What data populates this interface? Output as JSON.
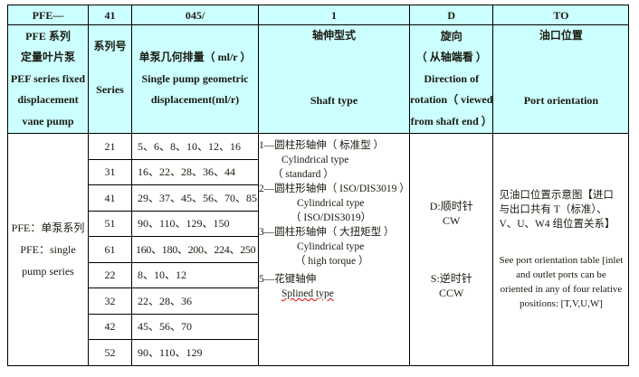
{
  "code_row": [
    "PFE—",
    "41",
    "045/",
    "1",
    "D",
    "TO"
  ],
  "headers": {
    "model": [
      "PFE 系列",
      "定量叶片泵",
      "PEF series fixed",
      "displacement",
      "vane pump"
    ],
    "series": [
      "系列号",
      "Series"
    ],
    "displacement": [
      "单泵几何排量（ ml/r ）",
      "Single pump geometric",
      "displacement(ml/r)"
    ],
    "shaft": [
      "轴伸型式",
      "Shaft type"
    ],
    "rotation": [
      "旋向",
      "（ 从轴端看 ）",
      "Direction of",
      "rotation（ viewed",
      "from shaft end ）"
    ],
    "port": [
      "油口位置",
      "Port orientation"
    ]
  },
  "model_desc": [
    "PFE：单泵系列",
    "PFE：single",
    "pump series"
  ],
  "rows": [
    {
      "series": "21",
      "displacement": "5、6、8、10、12、16"
    },
    {
      "series": "31",
      "displacement": "16、22、28、36、44"
    },
    {
      "series": "41",
      "displacement": "29、37、45、56、70、85"
    },
    {
      "series": "51",
      "displacement": "90、110、129、150"
    },
    {
      "series": "61",
      "displacement": "160、180、200、224、250"
    },
    {
      "series": "22",
      "displacement": "8、10、12"
    },
    {
      "series": "32",
      "displacement": "22、28、36"
    },
    {
      "series": "42",
      "displacement": "45、56、70"
    },
    {
      "series": "52",
      "displacement": "90、110、129"
    }
  ],
  "shaft_types": [
    "1—圆柱形轴伸（ 标准型 ）",
    "Cylindrical type",
    "（ standard ）",
    "2—圆柱形轴伸（ ISO/DIS3019 ）",
    "Cylindrical type",
    "（ ISO/DIS3019）",
    "3—圆柱形轴伸（ 大扭矩型 ）",
    "Cylindrical type",
    "（ high torque ）",
    "5—花键轴伸",
    "Splined type"
  ],
  "rotation": {
    "cw": [
      "D:顺时针",
      "CW"
    ],
    "ccw": [
      "S:逆时针",
      "CCW"
    ]
  },
  "port": {
    "cn": "见油口位置示意图【进口与出口共有 T（标准）、V、U、W4 组位置关系】",
    "en": "See port orientation table [inlet and outlet ports can be oriented in any of four relative positions: [T,V,U,W]"
  },
  "colors": {
    "header_bg": "#ccffff",
    "border": "#000000"
  }
}
